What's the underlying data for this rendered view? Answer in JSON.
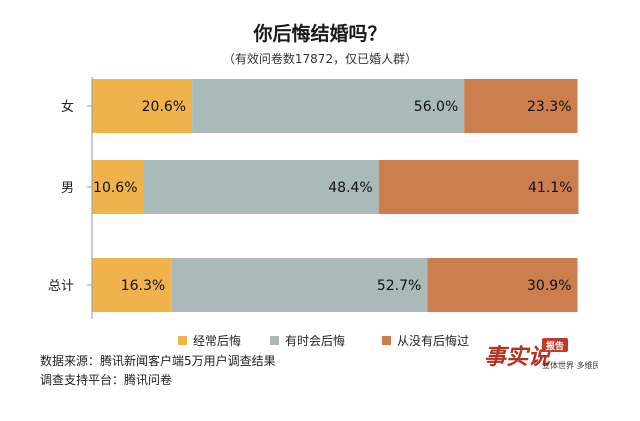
{
  "chart_data": {
    "type": "bar",
    "orientation": "horizontal",
    "stacked": true,
    "title": "你后悔结婚吗？",
    "subtitle": "（有效问卷数17872，仅已婚人群）",
    "categories": [
      "女",
      "男",
      "总计"
    ],
    "series": [
      {
        "name": "经常后悔",
        "values": [
          20.6,
          10.6,
          16.3
        ],
        "color": "#f0b24d"
      },
      {
        "name": "有时会后悔",
        "values": [
          56.0,
          48.4,
          52.7
        ],
        "color": "#a9bab8"
      },
      {
        "name": "从没有后悔过",
        "values": [
          23.3,
          41.1,
          30.9
        ],
        "color": "#cc7e4f"
      }
    ],
    "data_labels": [
      [
        "20.6%",
        "10.6%",
        "16.3%"
      ],
      [
        "56.0%",
        "48.4%",
        "52.7%"
      ],
      [
        "23.3%",
        "41.1%",
        "30.9%"
      ]
    ],
    "xlim": [
      0,
      100
    ],
    "grid": false,
    "legend_position": "bottom"
  },
  "footer": {
    "source": "数据来源：腾讯新闻客户端5万用户调查结果",
    "platform": "调查支持平台：腾讯问卷"
  },
  "logo": {
    "main": "事实说",
    "badge": "报告",
    "slogan": "立体世界 多维民意"
  }
}
